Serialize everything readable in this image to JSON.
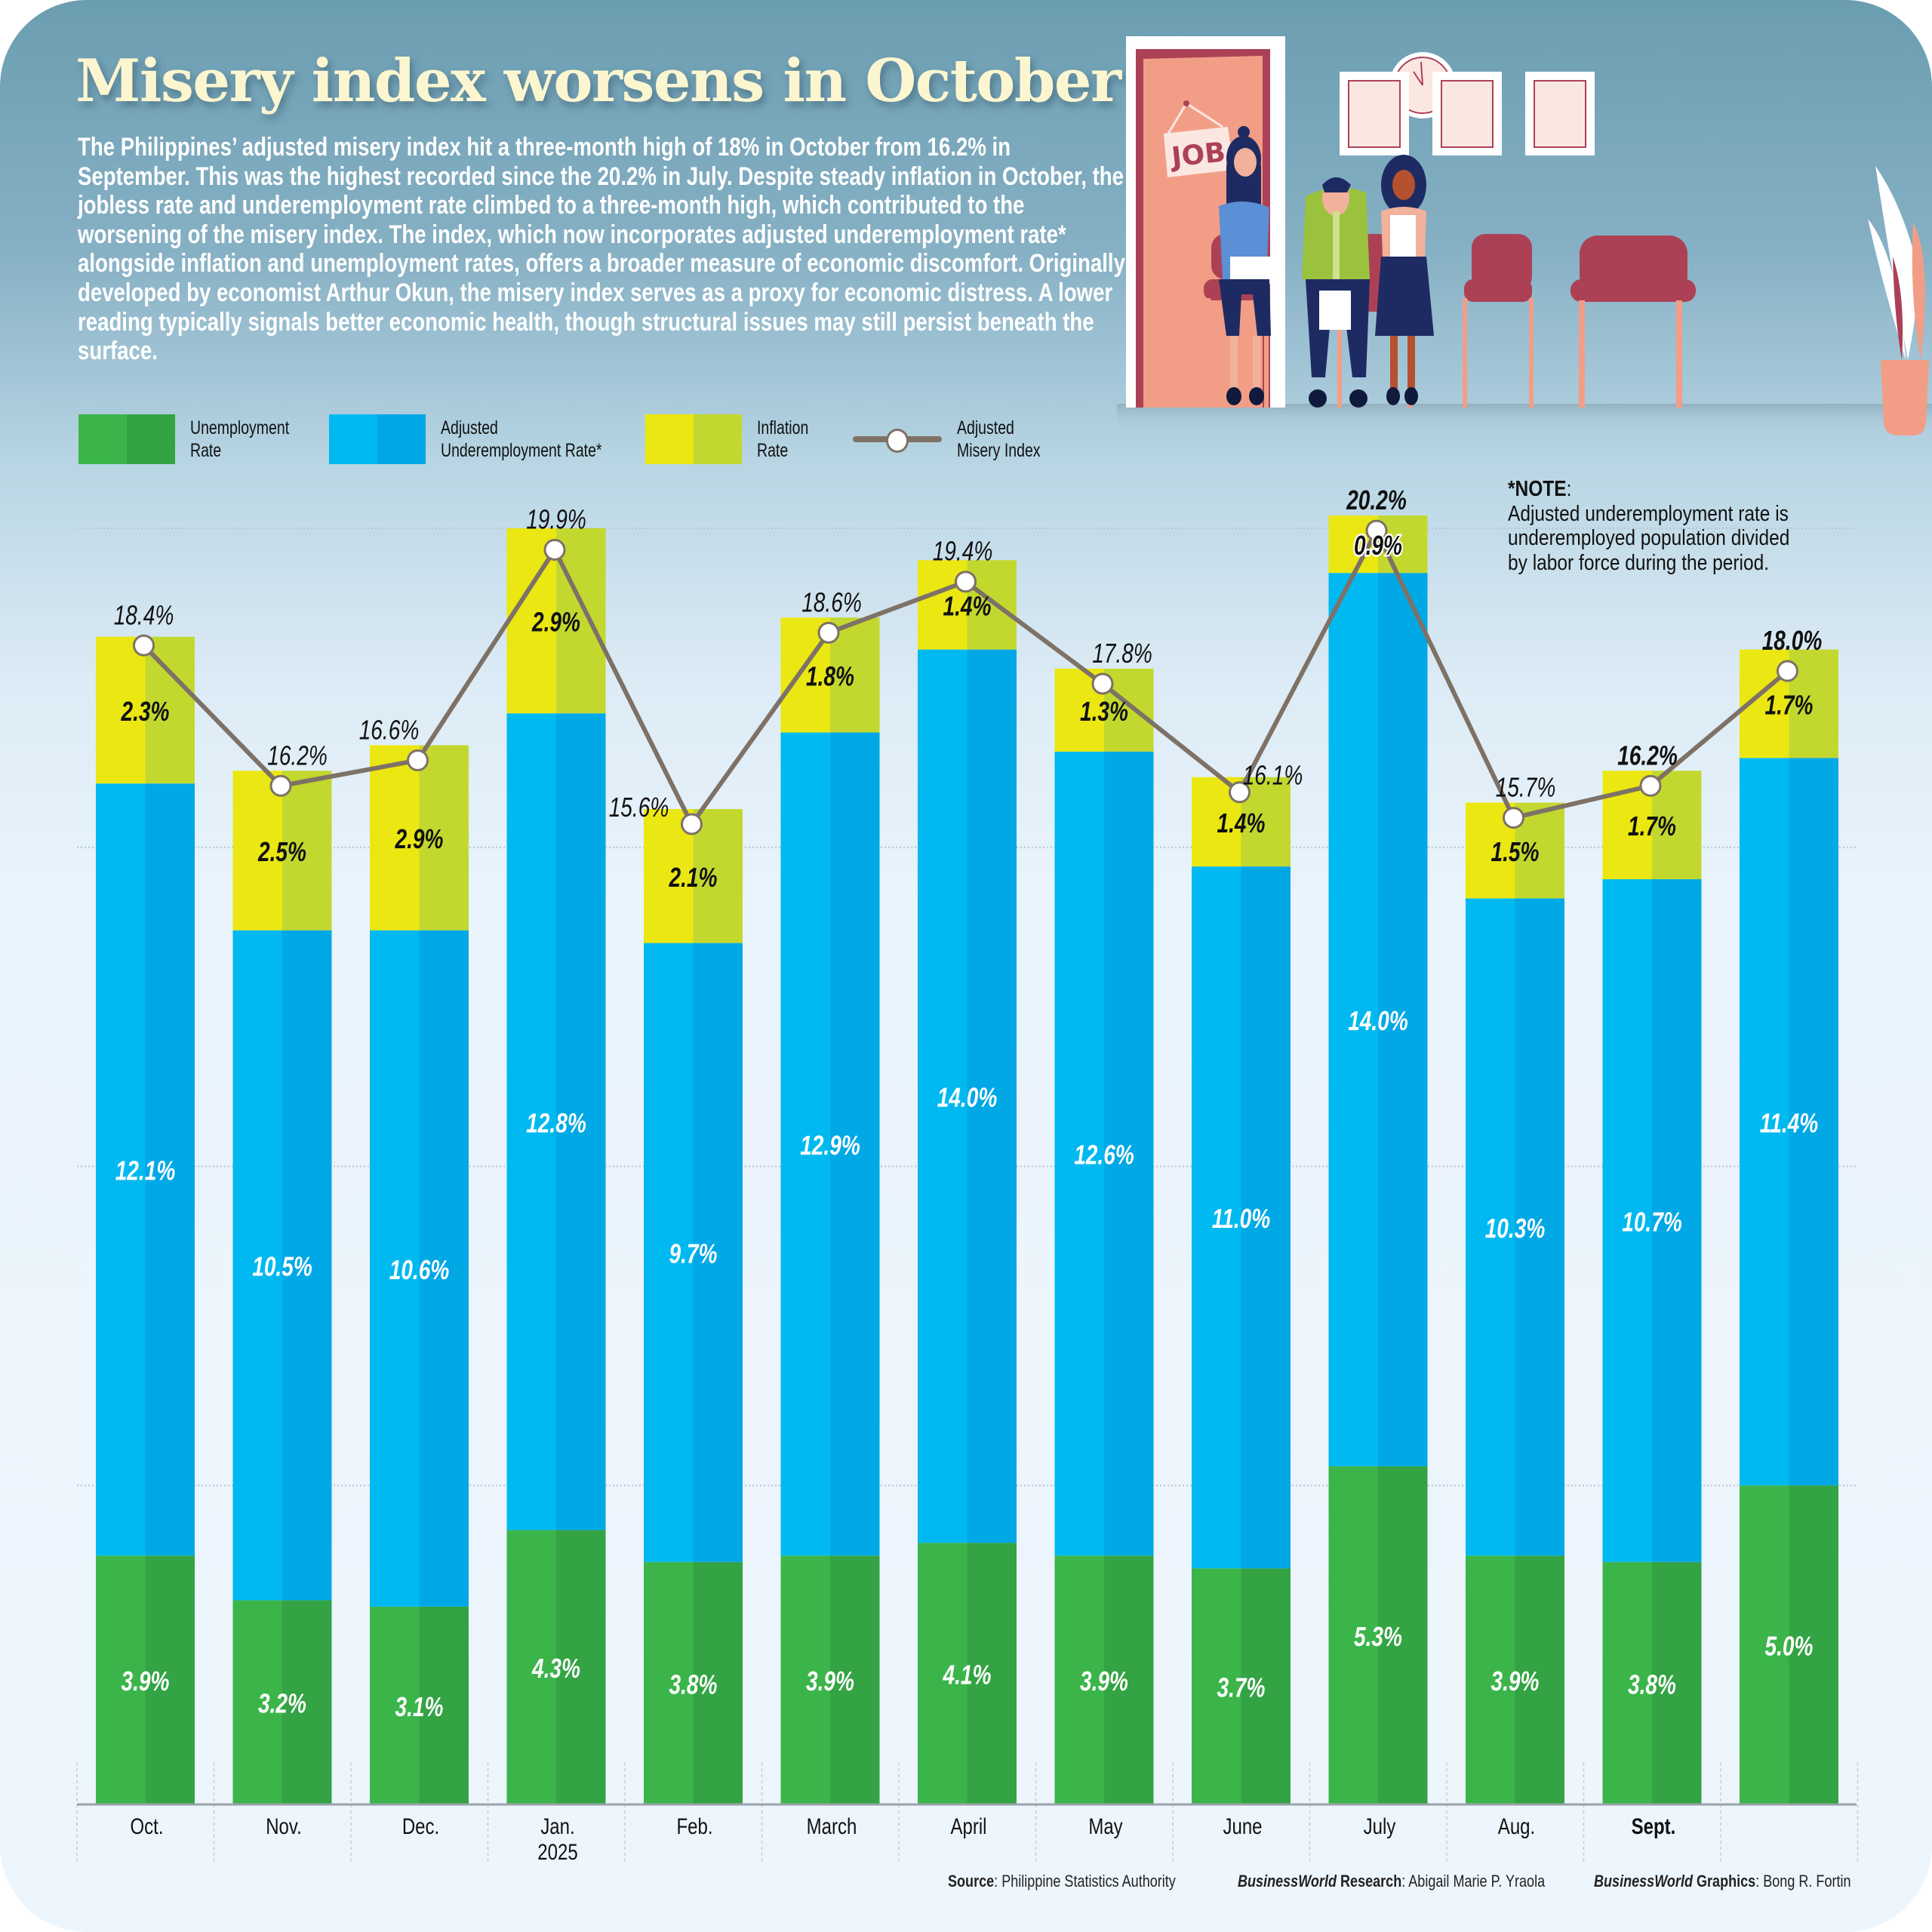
{
  "title": "Misery index worsens in October",
  "intro": "The Philippines’ adjusted misery index hit a three-month high of 18% in October from 16.2% in September. This was the highest recorded since the 20.2% in July.  Despite steady inflation in October, the jobless rate and underemployment rate climbed to a three-month high, which contributed to the worsening of the misery index. The index, which now incorporates adjusted underemployment rate* alongside inflation and unemployment rates, offers a broader measure of economic discomfort. Originally developed by economist Arthur Okun, the misery index serves as a proxy for economic distress. A lower reading typically signals better economic health, though structural issues may still persist beneath the surface.",
  "illustration": {
    "sign_text": "JOB"
  },
  "legend": [
    {
      "label": "Unemployment\nRate",
      "colors": [
        "#3bb54a",
        "#33a343"
      ]
    },
    {
      "label": "Adjusted\nUnderemployment Rate*",
      "colors": [
        "#00b9f0",
        "#00a8e6"
      ]
    },
    {
      "label": "Inflation\nRate",
      "colors": [
        "#ebe712",
        "#c2d82f"
      ]
    },
    {
      "label": "Adjusted\nMisery Index",
      "colors": [
        "#7e7166"
      ]
    }
  ],
  "note": {
    "heading": "*NOTE",
    "colon": ":",
    "lines": [
      "Adjusted underemployment rate is",
      "underemployed population divided",
      "by labor force during the period."
    ]
  },
  "chart_data": {
    "type": "bar",
    "stacked": true,
    "title": "Misery index worsens in October",
    "xlabel": "",
    "ylabel": "",
    "ylim": [
      0,
      20
    ],
    "grid": true,
    "legend_position": "top",
    "categories": [
      "Oct.",
      "Nov.",
      "Dec.",
      "Jan.\n2025",
      "Feb.",
      "March",
      "April",
      "May",
      "June",
      "July",
      "Aug.",
      "Sept.",
      ""
    ],
    "series": [
      {
        "name": "Unemployment Rate",
        "values": [
          3.9,
          3.2,
          3.1,
          4.3,
          3.8,
          3.9,
          4.1,
          3.9,
          3.7,
          5.3,
          3.9,
          3.8,
          5.0
        ],
        "labels": [
          "3.9%",
          "3.2%",
          "3.1%",
          "4.3%",
          "3.8%",
          "3.9%",
          "4.1%",
          "3.9%",
          "3.7%",
          "5.3%",
          "3.9%",
          "3.8%",
          "5.0%"
        ]
      },
      {
        "name": "Adjusted Underemployment Rate*",
        "values": [
          12.1,
          10.5,
          10.6,
          12.8,
          9.7,
          12.9,
          14.0,
          12.6,
          11.0,
          14.0,
          10.3,
          10.7,
          11.4
        ],
        "labels": [
          "12.1%",
          "10.5%",
          "10.6%",
          "12.8%",
          "9.7%",
          "12.9%",
          "14.0%",
          "12.6%",
          "11.0%",
          "14.0%",
          "10.3%",
          "10.7%",
          "11.4%"
        ]
      },
      {
        "name": "Inflation Rate",
        "values": [
          2.3,
          2.5,
          2.9,
          2.9,
          2.1,
          1.8,
          1.4,
          1.3,
          1.4,
          0.9,
          1.5,
          1.7,
          1.7
        ],
        "labels": [
          "2.3%",
          "2.5%",
          "2.9%",
          "2.9%",
          "2.1%",
          "1.8%",
          "1.4%",
          "1.3%",
          "1.4%",
          "0.9%",
          "1.5%",
          "1.7%",
          "1.7%"
        ]
      }
    ],
    "line": {
      "name": "Adjusted Misery Index",
      "values": [
        18.4,
        16.2,
        16.6,
        19.9,
        15.6,
        18.6,
        19.4,
        17.8,
        16.1,
        20.2,
        15.7,
        16.2,
        18.0
      ],
      "labels": [
        "18.4%",
        "16.2%",
        "16.6%",
        "19.9%",
        "15.6%",
        "18.6%",
        "19.4%",
        "17.8%",
        "16.1%",
        "20.2%",
        "15.7%",
        "16.2%",
        "18.0%"
      ]
    }
  },
  "footer": {
    "source_label": "Source",
    "source_text": ": Philippine Statistics Authority",
    "research_brand": "BusinessWorld",
    "research_label": " Research",
    "research_text": ": Abigail Marie P. Yraola",
    "graphics_brand": "BusinessWorld",
    "graphics_label": " Graphics",
    "graphics_text": ": Bong R. Fortin"
  }
}
